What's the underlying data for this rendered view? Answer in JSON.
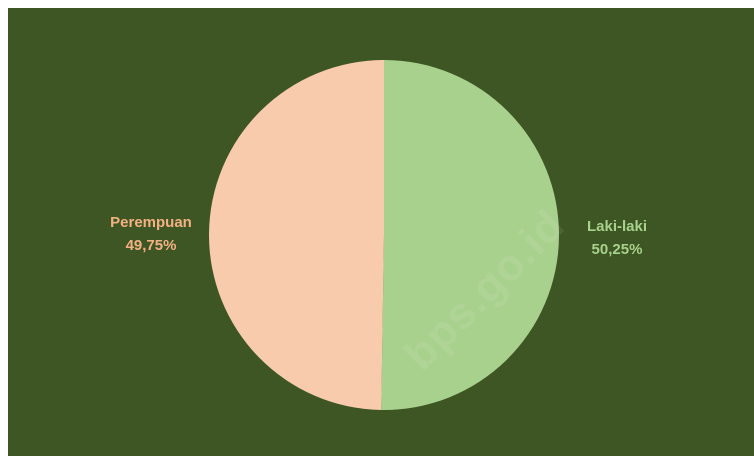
{
  "chart_data": {
    "type": "pie",
    "slices": [
      {
        "label": "Laki-laki",
        "value": 50.25,
        "display": "50,25%",
        "color": "#a9d18e",
        "label_color": "#a9d18e"
      },
      {
        "label": "Perempuan",
        "value": 49.75,
        "display": "49,75%",
        "color": "#f8cbad",
        "label_color": "#f4b183"
      }
    ],
    "start_angle_deg": 0,
    "direction": "clockwise",
    "background_color": "#3d5623"
  },
  "watermark": "bps.go.id"
}
